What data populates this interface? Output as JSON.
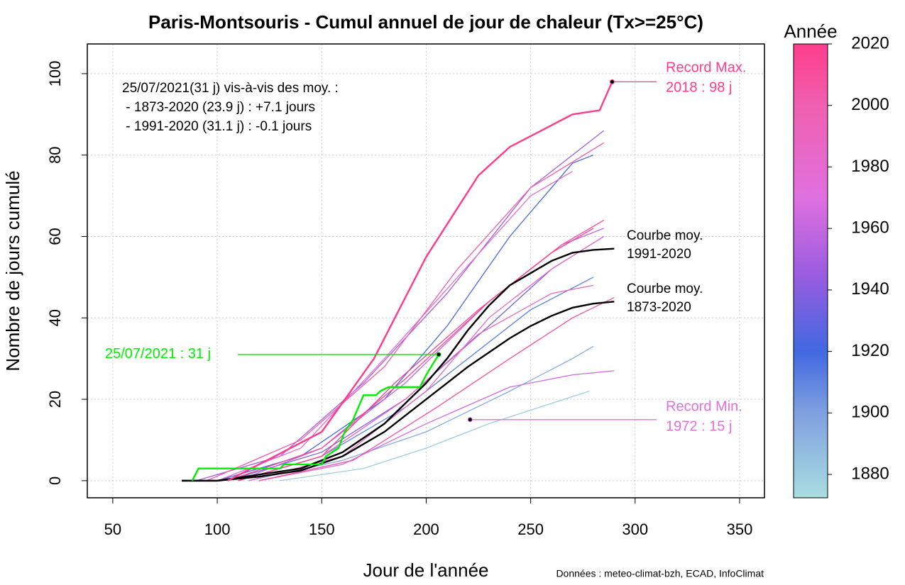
{
  "chart_data": {
    "type": "line",
    "title": "Paris-Montsouris - Cumul annuel de jour de chaleur (Tx>=25°C)",
    "x_label": "Jour de l'année",
    "y_label": "Nombre de jours cumulé",
    "source": "Données : meteo-climat-bzh, ECAD, InfoClimat",
    "xlim": [
      37.8,
      361.9
    ],
    "xticks": [
      50,
      100,
      150,
      200,
      250,
      300,
      350
    ],
    "ylim": [
      -4.2,
      107.3
    ],
    "yticks": [
      0,
      20,
      40,
      60,
      80,
      100
    ],
    "grid": true,
    "colorbar": {
      "title": "Année",
      "lim": [
        1872.4,
        2020
      ],
      "ticks": [
        1880,
        1900,
        1920,
        1940,
        1960,
        1980,
        2000,
        2020
      ],
      "colorscale": [
        [
          1873,
          "#a8dce0"
        ],
        [
          1900,
          "#7fa0e0"
        ],
        [
          1920,
          "#4169e1"
        ],
        [
          1945,
          "#9a5ce0"
        ],
        [
          1970,
          "#e070e0"
        ],
        [
          2000,
          "#f060b0"
        ],
        [
          2020,
          "#ff3c8c"
        ]
      ]
    },
    "background_series": [
      {
        "year": 1880,
        "x": [
          130,
          170,
          200,
          230,
          260,
          278
        ],
        "values": [
          0,
          3,
          8,
          14,
          19,
          22
        ]
      },
      {
        "year": 1895,
        "x": [
          115,
          160,
          200,
          240,
          270,
          280
        ],
        "values": [
          0,
          5,
          12,
          22,
          30,
          33
        ]
      },
      {
        "year": 1911,
        "x": [
          110,
          150,
          190,
          220,
          250,
          280
        ],
        "values": [
          0,
          6,
          18,
          30,
          42,
          50
        ]
      },
      {
        "year": 1921,
        "x": [
          100,
          140,
          180,
          210,
          240,
          270,
          280
        ],
        "values": [
          0,
          6,
          20,
          38,
          60,
          78,
          80
        ]
      },
      {
        "year": 1934,
        "x": [
          105,
          150,
          190,
          230,
          260,
          285
        ],
        "values": [
          0,
          7,
          20,
          38,
          52,
          60
        ]
      },
      {
        "year": 1947,
        "x": [
          90,
          130,
          170,
          210,
          250,
          285
        ],
        "values": [
          0,
          6,
          24,
          46,
          72,
          86
        ]
      },
      {
        "year": 1959,
        "x": [
          110,
          150,
          190,
          230,
          265,
          285
        ],
        "values": [
          0,
          8,
          24,
          44,
          58,
          62
        ]
      },
      {
        "year": 1964,
        "x": [
          120,
          160,
          200,
          240,
          270,
          290
        ],
        "values": [
          0,
          4,
          14,
          23,
          26,
          27
        ]
      },
      {
        "year": 1976,
        "x": [
          100,
          140,
          180,
          215,
          250,
          270
        ],
        "values": [
          0,
          8,
          30,
          50,
          70,
          76
        ]
      },
      {
        "year": 1983,
        "x": [
          115,
          160,
          200,
          230,
          260,
          285
        ],
        "values": [
          0,
          6,
          22,
          40,
          52,
          60
        ]
      },
      {
        "year": 1990,
        "x": [
          110,
          150,
          190,
          225,
          260,
          280
        ],
        "values": [
          0,
          6,
          20,
          36,
          46,
          48
        ]
      },
      {
        "year": 2003,
        "x": [
          95,
          140,
          180,
          215,
          250,
          285
        ],
        "values": [
          0,
          10,
          28,
          52,
          72,
          83
        ]
      },
      {
        "year": 2009,
        "x": [
          120,
          165,
          205,
          240,
          270,
          290
        ],
        "values": [
          0,
          5,
          18,
          30,
          40,
          45
        ]
      },
      {
        "year": 2015,
        "x": [
          105,
          150,
          190,
          230,
          265,
          285
        ],
        "values": [
          0,
          8,
          25,
          44,
          58,
          64
        ]
      },
      {
        "year": 2020,
        "x": [
          110,
          150,
          185,
          225,
          260,
          280
        ],
        "values": [
          0,
          6,
          24,
          42,
          56,
          62
        ]
      }
    ],
    "series": [
      {
        "name": "Courbe moy. 1991-2020",
        "label_lines": [
          "Courbe moy.",
          "1991-2020"
        ],
        "color": "#000000",
        "x": [
          83,
          100,
          120,
          140,
          160,
          180,
          200,
          210,
          220,
          230,
          240,
          250,
          260,
          270,
          280,
          290
        ],
        "values": [
          0,
          0,
          1.5,
          3,
          7,
          14,
          24,
          30,
          37,
          43,
          48,
          51,
          54,
          56,
          56.7,
          57
        ]
      },
      {
        "name": "Courbe moy. 1873-2020",
        "label_lines": [
          "Courbe moy.",
          "1873-2020"
        ],
        "color": "#000000",
        "x": [
          83,
          100,
          120,
          140,
          160,
          180,
          200,
          220,
          240,
          250,
          260,
          270,
          280,
          290
        ],
        "values": [
          0,
          0,
          1,
          2.5,
          6,
          12,
          20,
          28,
          35,
          38,
          40.5,
          42.5,
          43.5,
          44
        ]
      },
      {
        "name": "2018",
        "color": "#ff3c8c",
        "x": [
          105,
          150,
          175,
          200,
          215,
          225,
          240,
          255,
          270,
          283,
          289
        ],
        "values": [
          0,
          12,
          30,
          55,
          67,
          75,
          82,
          86,
          90,
          91,
          98
        ]
      },
      {
        "name": "2021",
        "color": "#00ee00",
        "x": [
          88,
          91,
          130,
          132,
          150,
          152,
          158,
          161,
          165,
          170,
          176,
          178,
          182,
          197,
          200,
          206
        ],
        "values": [
          0,
          3,
          3,
          4,
          4,
          6,
          8,
          12,
          15,
          21,
          21,
          22,
          23,
          23,
          26,
          31
        ]
      }
    ],
    "annotations": {
      "record_max": {
        "x": 289,
        "value": 98,
        "lines": [
          "Record Max.",
          "2018 : 98 j"
        ],
        "color": "#ff3c8c"
      },
      "record_min": {
        "x": 221,
        "value": 15,
        "lines": [
          "Record Min.",
          "1972 : 15 j"
        ],
        "color": "#e070e0"
      },
      "current": {
        "x": 206,
        "value": 31,
        "label": "25/07/2021 : 31 j",
        "color": "#00ee00"
      },
      "comparison": [
        "25/07/2021(31 j) vis-à-vis des moy. :",
        " - 1873-2020 (23.9 j) : +7.1 jours",
        " - 1991-2020 (31.1 j) : -0.1 jours"
      ]
    }
  }
}
